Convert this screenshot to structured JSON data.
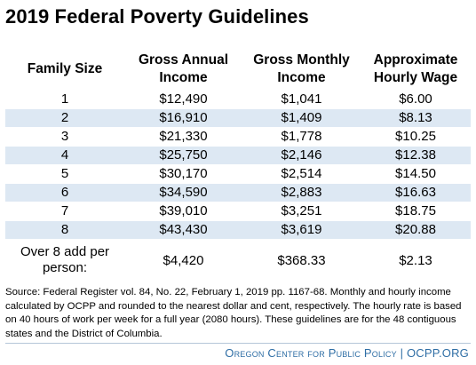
{
  "title": "2019 Federal Poverty Guidelines",
  "table": {
    "headers": {
      "family_size": "Family Size",
      "gross_annual": [
        "Gross Annual",
        "Income"
      ],
      "gross_monthly": [
        "Gross Monthly",
        "Income"
      ],
      "hourly": [
        "Approximate",
        "Hourly Wage"
      ]
    },
    "rows": [
      [
        "1",
        "$12,490",
        "$1,041",
        "$6.00"
      ],
      [
        "2",
        "$16,910",
        "$1,409",
        "$8.13"
      ],
      [
        "3",
        "$21,330",
        "$1,778",
        "$10.25"
      ],
      [
        "4",
        "$25,750",
        "$2,146",
        "$12.38"
      ],
      [
        "5",
        "$30,170",
        "$2,514",
        "$14.50"
      ],
      [
        "6",
        "$34,590",
        "$2,883",
        "$16.63"
      ],
      [
        "7",
        "$39,010",
        "$3,251",
        "$18.75"
      ],
      [
        "8",
        "$43,430",
        "$3,619",
        "$20.88"
      ]
    ],
    "extra_row": {
      "label": [
        "Over 8 add per",
        "person:"
      ],
      "annual": "$4,420",
      "monthly": "$368.33",
      "hourly": "$2.13"
    },
    "stripe_color": "#dde8f3"
  },
  "source_note": "Source: Federal Register vol. 84, No. 22, February 1, 2019 pp. 1167-68. Monthly and hourly income calculated by OCPP and rounded to the nearest dollar and cent, respectively. The hourly rate is based on 40 hours of work per week for a full year (2080 hours). These guidelines are for the 48 contiguous states and the District of Columbia.",
  "footer": {
    "org": "Oregon Center for Public Policy",
    "separator": "|",
    "site": "OCPP.ORG",
    "color": "#2f6ea5"
  }
}
